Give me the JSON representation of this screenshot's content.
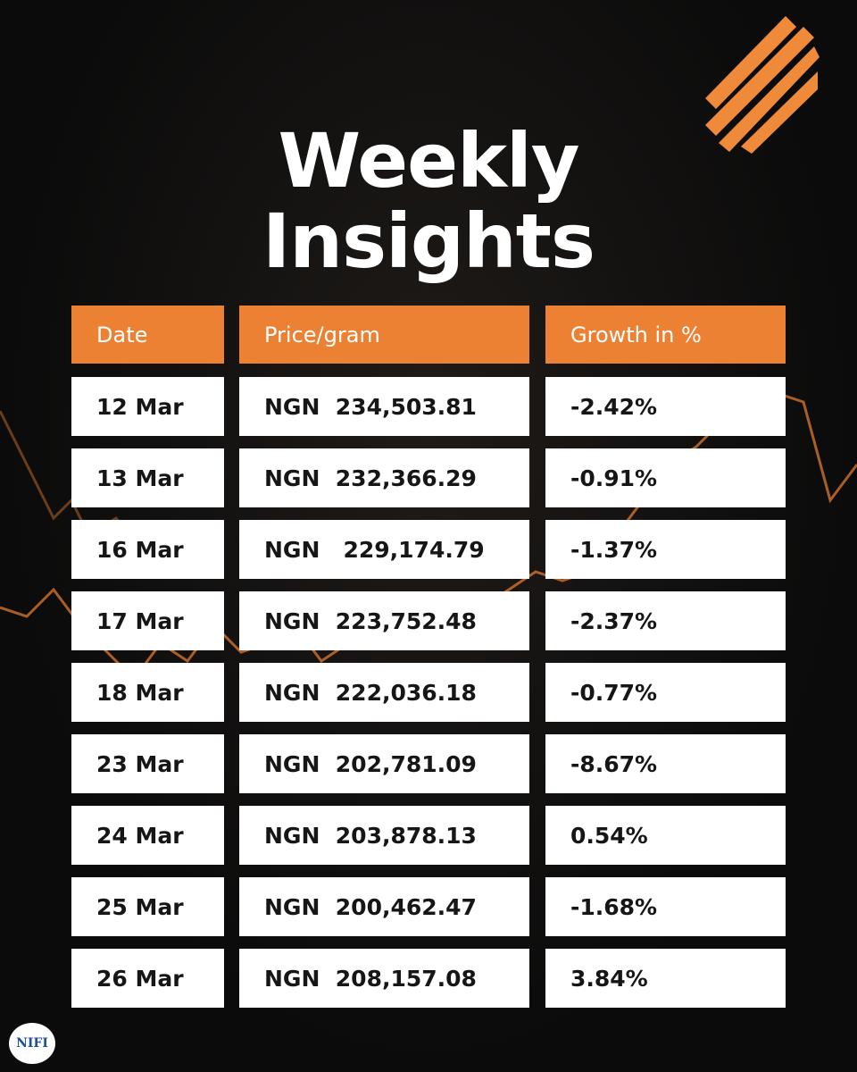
{
  "title": {
    "lines": [
      "Weekly",
      "Insights"
    ]
  },
  "table": {
    "headers": [
      "Date",
      "Price/gram",
      "Growth in %"
    ],
    "rows": [
      [
        "12 Mar",
        "NGN  234,503.81",
        "-2.42%"
      ],
      [
        "13 Mar",
        "NGN  232,366.29",
        "-0.91%"
      ],
      [
        "16 Mar",
        "NGN   229,174.79",
        "-1.37%"
      ],
      [
        "17 Mar",
        "NGN  223,752.48",
        "-2.37%"
      ],
      [
        "18 Mar",
        "NGN  222,036.18",
        "-0.77%"
      ],
      [
        "23 Mar",
        "NGN  202,781.09",
        "-8.67%"
      ],
      [
        "24 Mar",
        "NGN  203,878.13",
        "0.54%"
      ],
      [
        "25 Mar",
        "NGN  200,462.47",
        "-1.68%"
      ],
      [
        "26 Mar",
        "NGN  208,157.08",
        "3.84%"
      ]
    ]
  },
  "logo": {
    "text": "NIFI"
  }
}
